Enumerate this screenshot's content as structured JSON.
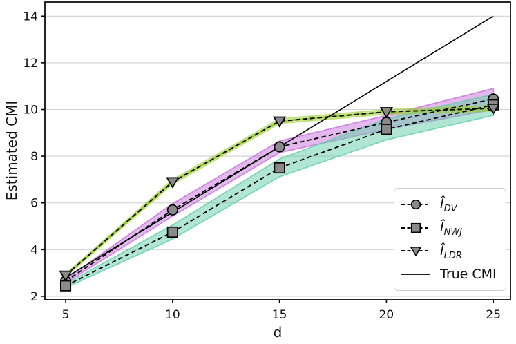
{
  "chart_data": {
    "type": "line",
    "title": "",
    "xlabel": "d",
    "ylabel": "Estimated CMI",
    "x": [
      5,
      10,
      15,
      20,
      25
    ],
    "x_ticks": [
      "5",
      "10",
      "15",
      "20",
      "25"
    ],
    "y_ticks": [
      "2",
      "4",
      "6",
      "8",
      "10",
      "12",
      "14"
    ],
    "xlim": [
      4.03,
      25.8
    ],
    "ylim": [
      1.85,
      14.6
    ],
    "grid": "horizontal-only",
    "grid_color": "#d2d2d2",
    "axis_color": "#000000",
    "legend_position": "lower-right",
    "series": [
      {
        "name": "I_DV",
        "display": "Î_DV",
        "label_main": "Î",
        "label_sub": "DV",
        "line_style": "dashed",
        "line_color": "#000000",
        "marker": "circle",
        "marker_fill": "#8a8a8a",
        "marker_edge": "#000000",
        "band_fill": "rgba(186,85,211,0.42)",
        "band_edge": "rgba(186,85,211,0.6)",
        "values": [
          2.65,
          5.7,
          8.4,
          9.45,
          10.45
        ],
        "band_halfwidth": [
          0.08,
          0.27,
          0.25,
          0.3,
          0.45
        ]
      },
      {
        "name": "I_NWJ",
        "display": "Î_NWJ",
        "label_main": "Î",
        "label_sub": "NWJ",
        "line_style": "dashed",
        "line_color": "#000000",
        "marker": "square",
        "marker_fill": "#8a8a8a",
        "marker_edge": "#000000",
        "band_fill": "rgba(102,205,170,0.5)",
        "band_edge": "rgba(102,205,170,0.8)",
        "values": [
          2.45,
          4.75,
          7.5,
          9.15,
          10.2
        ],
        "band_halfwidth": [
          0.08,
          0.3,
          0.38,
          0.45,
          0.45
        ]
      },
      {
        "name": "I_LDR",
        "display": "Î_LDR",
        "label_main": "Î",
        "label_sub": "LDR",
        "line_style": "dashed",
        "line_color": "#000000",
        "core_line_color": "#9acd32",
        "marker": "triangle-down",
        "marker_fill": "#8a8a8a",
        "marker_edge": "#000000",
        "band_fill": "rgba(154,205,50,0.45)",
        "band_edge": "rgba(154,205,50,0.55)",
        "values": [
          2.9,
          6.9,
          9.5,
          9.9,
          10.05
        ],
        "band_halfwidth": [
          0.06,
          0.1,
          0.1,
          0.1,
          0.12
        ]
      },
      {
        "name": "True CMI",
        "display": "True CMI",
        "line_style": "solid",
        "line_color": "#000000",
        "marker": "none",
        "values": [
          2.8,
          5.6,
          8.4,
          11.2,
          14.0
        ]
      }
    ]
  }
}
